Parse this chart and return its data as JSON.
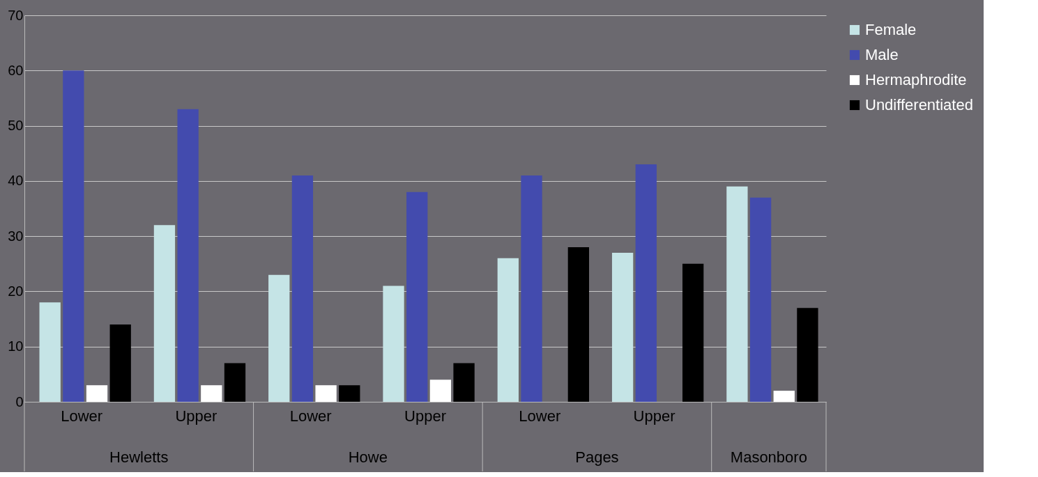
{
  "chart_data": {
    "type": "bar",
    "categories": [
      "Lower",
      "Upper",
      "Lower",
      "Upper",
      "Lower",
      "Upper",
      null
    ],
    "series": [
      {
        "name": "Female",
        "color": "#c5e4e6",
        "values": [
          18,
          32,
          23,
          21,
          26,
          27,
          39
        ]
      },
      {
        "name": "Male",
        "color": "#434bae",
        "values": [
          60,
          53,
          41,
          38,
          41,
          43,
          37
        ]
      },
      {
        "name": "Hermaphrodite",
        "color": "#ffffff",
        "values": [
          3,
          3,
          3,
          4,
          null,
          null,
          2
        ]
      },
      {
        "name": "Undifferentiated",
        "color": "#000000",
        "values": [
          14,
          7,
          3,
          7,
          28,
          25,
          17
        ]
      }
    ],
    "annotations": [
      "Hewletts",
      "Howe",
      "Pages",
      "Masonboro"
    ],
    "ylim": [
      0,
      70
    ],
    "yticks": [
      0,
      10,
      20,
      30,
      40,
      50,
      60,
      70
    ],
    "grid": "y",
    "legend": "right"
  }
}
